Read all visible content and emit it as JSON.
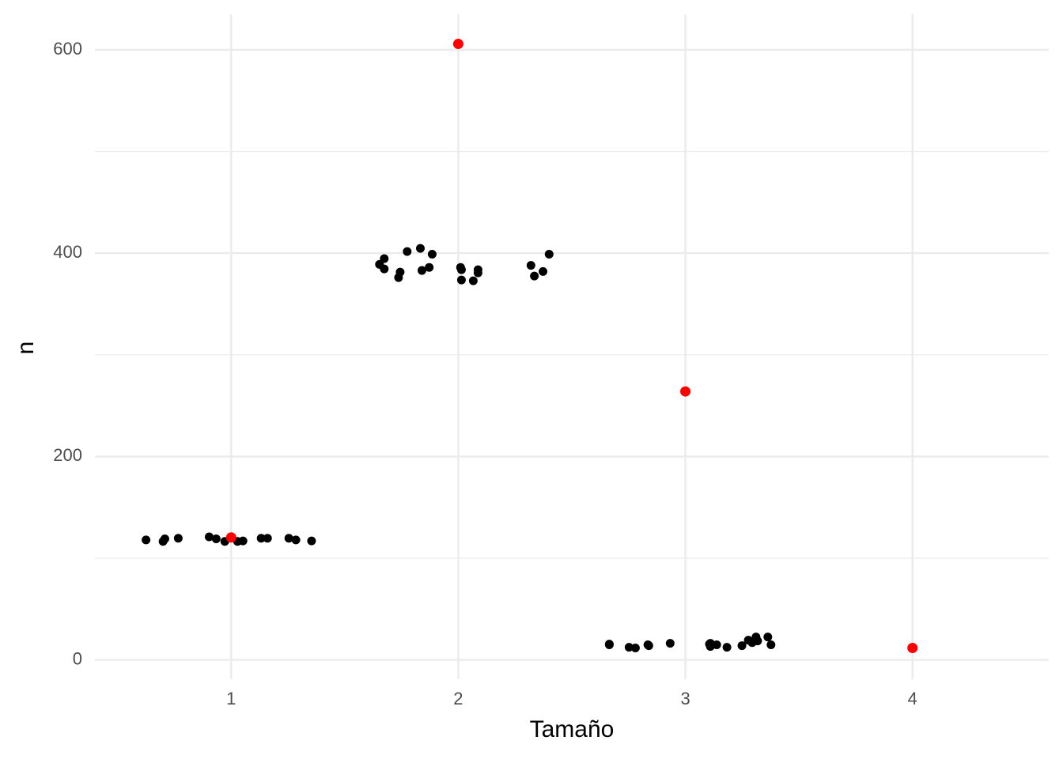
{
  "chart_data": {
    "type": "scatter",
    "x_label": "Tamaño",
    "y_label": "n",
    "xlim": [
      0.4,
      4.6
    ],
    "xticks": [
      1,
      2,
      3,
      4
    ],
    "ylim": [
      -19,
      635
    ],
    "yticks": [
      0,
      200,
      400,
      600
    ],
    "yminor": [
      100,
      300,
      500
    ],
    "grid": true,
    "series": [
      {
        "color": "#000000",
        "x": [
          0.625,
          0.7,
          0.708,
          0.767,
          0.903,
          0.934,
          0.972,
          1.028,
          1.052,
          1.132,
          1.16,
          1.254,
          1.285,
          1.354,
          1.653,
          1.674,
          1.674,
          1.737,
          1.744,
          1.775,
          1.833,
          1.84,
          1.872,
          1.885,
          2.01,
          2.014,
          2.014,
          2.066,
          2.087,
          2.087,
          2.32,
          2.335,
          2.373,
          2.4,
          2.665,
          2.665,
          2.752,
          2.78,
          2.835,
          2.839,
          2.933,
          3.106,
          3.11,
          3.11,
          3.138,
          3.183,
          3.249,
          3.277,
          3.294,
          3.311,
          3.318,
          3.363,
          3.377
        ],
        "values": [
          118,
          116.5,
          119,
          119.6,
          121,
          119,
          116.5,
          116.5,
          117,
          119.6,
          119.6,
          119.6,
          118,
          117,
          389,
          394.6,
          384.5,
          376,
          381.4,
          401.6,
          404.7,
          383,
          386,
          399,
          386,
          373.6,
          383.7,
          372.8,
          383.7,
          380.6,
          388,
          377.5,
          382,
          399,
          15.5,
          14.8,
          12.4,
          11.7,
          14.8,
          14,
          16.3,
          15.5,
          13.2,
          16.3,
          14.8,
          12.4,
          14,
          19.4,
          17,
          22.5,
          18.6,
          22.5,
          14.8
        ]
      },
      {
        "color": "#ff0000",
        "x": [
          1,
          2,
          3,
          4
        ],
        "values": [
          120.4,
          605.8,
          264,
          11.7
        ]
      }
    ]
  }
}
